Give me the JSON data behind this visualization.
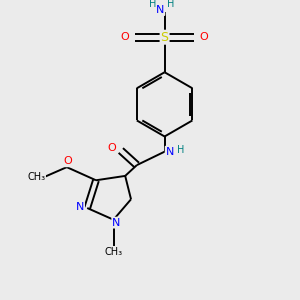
{
  "background_color": "#ebebeb",
  "bond_color": "#000000",
  "atom_colors": {
    "N": "#0000ff",
    "O": "#ff0000",
    "S": "#cccc00",
    "C": "#000000",
    "H": "#008080"
  },
  "figsize": [
    3.0,
    3.0
  ],
  "dpi": 100
}
